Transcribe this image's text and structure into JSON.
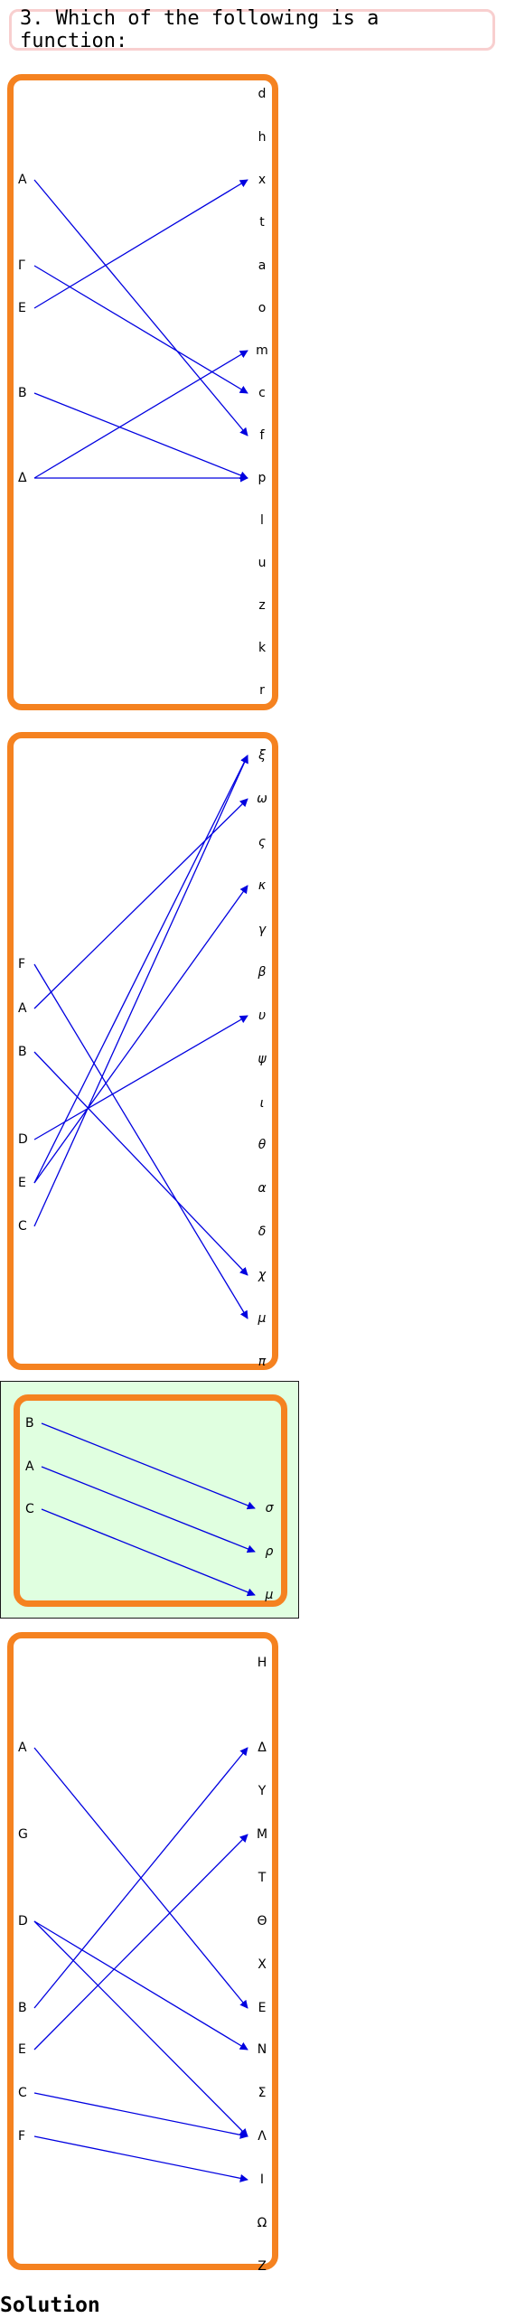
{
  "question": "3. Which of the following is a function:",
  "solution_heading": "Solution",
  "edge_color": "#0000e0",
  "frame_color": "#f58220",
  "highlight_color": "#e0ffe0",
  "diagrams": [
    {
      "id": "d1",
      "highlighted": false,
      "greek_right": false,
      "domain": [
        "A",
        "Γ",
        "E",
        "B",
        "Δ"
      ],
      "codomain": [
        "d",
        "h",
        "x",
        "t",
        "a",
        "o",
        "m",
        "c",
        "f",
        "p",
        "l",
        "u",
        "z",
        "k",
        "r"
      ],
      "edges": [
        [
          "A",
          "f"
        ],
        [
          "Γ",
          "c"
        ],
        [
          "E",
          "x"
        ],
        [
          "B",
          "p"
        ],
        [
          "Δ",
          "m"
        ],
        [
          "Δ",
          "p"
        ]
      ]
    },
    {
      "id": "d2",
      "highlighted": false,
      "greek_right": true,
      "domain": [
        "F",
        "A",
        "B",
        "D",
        "E",
        "C"
      ],
      "codomain": [
        "ξ",
        "ω",
        "ς",
        "κ",
        "γ",
        "β",
        "υ",
        "ψ",
        "ι",
        "θ",
        "α",
        "δ",
        "χ",
        "μ",
        "π"
      ],
      "edges": [
        [
          "F",
          "μ"
        ],
        [
          "A",
          "ω"
        ],
        [
          "B",
          "χ"
        ],
        [
          "D",
          "υ"
        ],
        [
          "E",
          "ξ"
        ],
        [
          "E",
          "κ"
        ],
        [
          "C",
          "ξ"
        ]
      ]
    },
    {
      "id": "d3",
      "highlighted": true,
      "greek_right": true,
      "domain": [
        "B",
        "A",
        "C"
      ],
      "codomain": [
        "σ",
        "ρ",
        "μ"
      ],
      "edges": [
        [
          "B",
          "σ"
        ],
        [
          "A",
          "ρ"
        ],
        [
          "C",
          "μ"
        ]
      ]
    },
    {
      "id": "d4",
      "highlighted": false,
      "greek_right": false,
      "domain": [
        "A",
        "G",
        "D",
        "B",
        "E",
        "C",
        "F"
      ],
      "codomain": [
        "H",
        "Δ",
        "Y",
        "M",
        "T",
        "Θ",
        "X",
        "E",
        "N",
        "Σ",
        "Λ",
        "I",
        "Ω",
        "Z"
      ],
      "edges": [
        [
          "A",
          "E"
        ],
        [
          "D",
          "N"
        ],
        [
          "D",
          "Λ"
        ],
        [
          "B",
          "Δ"
        ],
        [
          "E",
          "M"
        ],
        [
          "C",
          "Λ"
        ],
        [
          "F",
          "I"
        ]
      ]
    }
  ]
}
